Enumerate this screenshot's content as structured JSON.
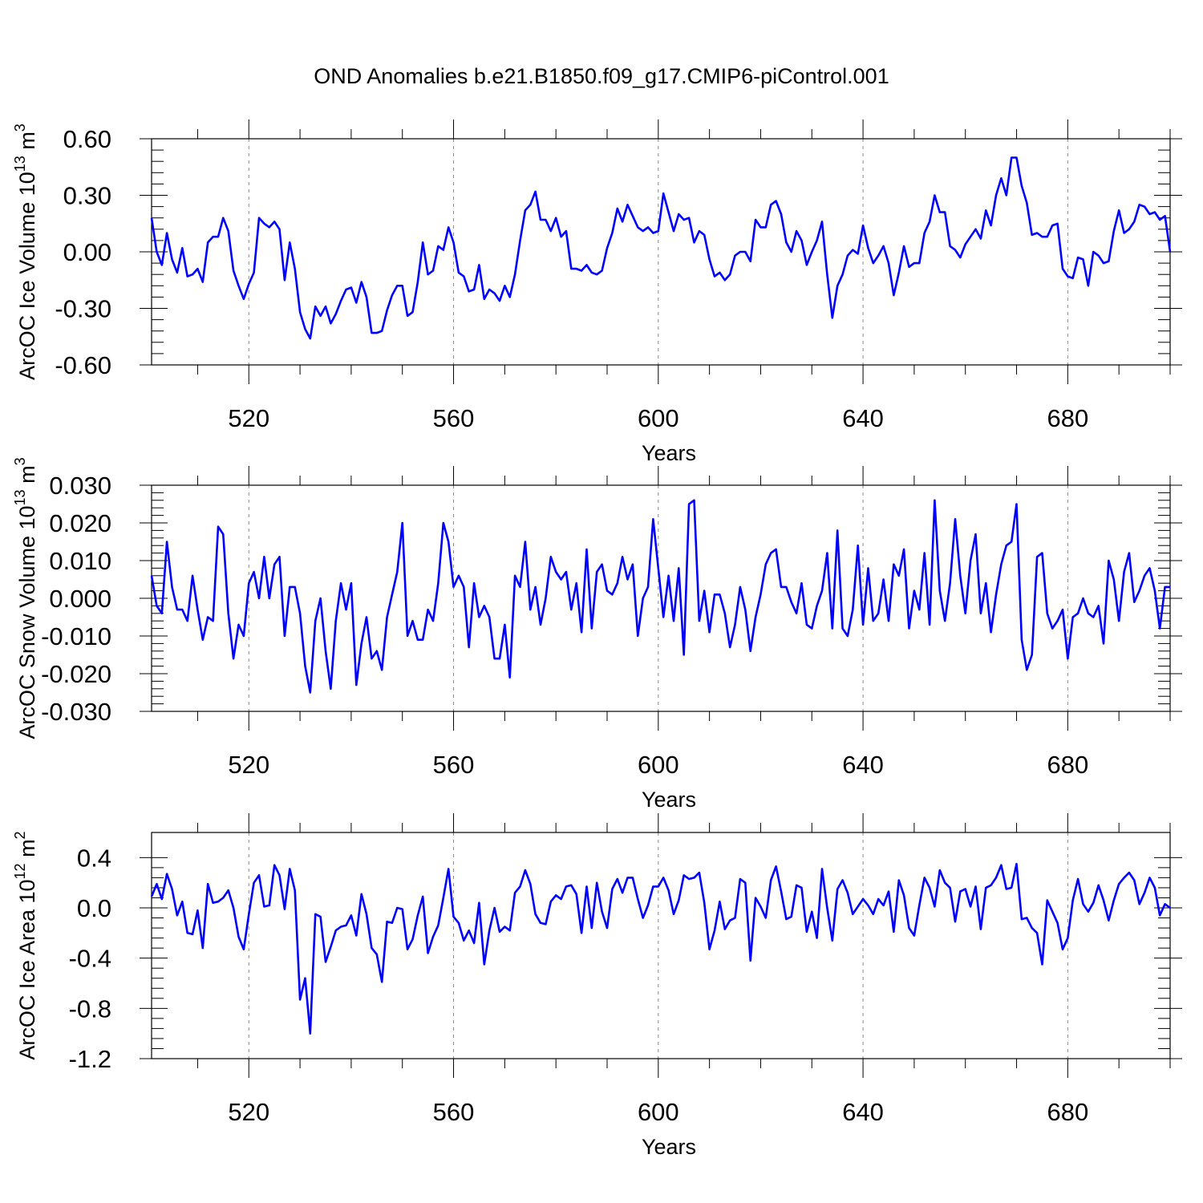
{
  "title": "OND Anomalies b.e21.B1850.f09_g17.CMIP6-piControl.001",
  "colors": {
    "line": "#0000ff",
    "axis": "#000000",
    "grid": "#888888"
  },
  "chart_data": [
    {
      "type": "line",
      "name": "ice-volume",
      "ylabel": "ArcOC Ice Volume 10",
      "ylabel_exp": "13",
      "ylabel_unit": " m",
      "ylabel_unit_exp": "3",
      "xlabel": "Years",
      "xlim": [
        501,
        700
      ],
      "ylim": [
        -0.6,
        0.6
      ],
      "xticks": [
        520,
        560,
        600,
        640,
        680
      ],
      "xtick_labels": [
        "520",
        "560",
        "600",
        "640",
        "680"
      ],
      "yticks": [
        -0.6,
        -0.3,
        0.0,
        0.3,
        0.6
      ],
      "ytick_labels": [
        "-0.60",
        "-0.30",
        "0.00",
        "0.30",
        "0.60"
      ],
      "x_start": 501,
      "values": [
        0.18,
        0.0,
        -0.07,
        0.1,
        -0.04,
        -0.11,
        0.02,
        -0.13,
        -0.12,
        -0.09,
        -0.16,
        0.05,
        0.08,
        0.08,
        0.18,
        0.11,
        -0.1,
        -0.18,
        -0.25,
        -0.17,
        -0.11,
        0.18,
        0.15,
        0.13,
        0.16,
        0.12,
        -0.15,
        0.05,
        -0.09,
        -0.32,
        -0.41,
        -0.46,
        -0.29,
        -0.34,
        -0.29,
        -0.38,
        -0.33,
        -0.26,
        -0.2,
        -0.19,
        -0.27,
        -0.16,
        -0.24,
        -0.43,
        -0.43,
        -0.42,
        -0.31,
        -0.23,
        -0.18,
        -0.18,
        -0.34,
        -0.32,
        -0.16,
        0.05,
        -0.12,
        -0.1,
        0.03,
        0.01,
        0.13,
        0.05,
        -0.11,
        -0.13,
        -0.21,
        -0.2,
        -0.07,
        -0.25,
        -0.2,
        -0.22,
        -0.26,
        -0.18,
        -0.24,
        -0.12,
        0.06,
        0.22,
        0.25,
        0.32,
        0.17,
        0.17,
        0.11,
        0.18,
        0.08,
        0.11,
        -0.09,
        -0.09,
        -0.1,
        -0.07,
        -0.11,
        -0.12,
        -0.1,
        0.02,
        0.1,
        0.23,
        0.16,
        0.25,
        0.19,
        0.13,
        0.11,
        0.13,
        0.1,
        0.11,
        0.31,
        0.21,
        0.11,
        0.2,
        0.17,
        0.18,
        0.05,
        0.11,
        0.09,
        -0.04,
        -0.13,
        -0.11,
        -0.15,
        -0.12,
        -0.02,
        0.0,
        0.0,
        -0.05,
        0.17,
        0.13,
        0.13,
        0.25,
        0.27,
        0.2,
        0.05,
        0.0,
        0.11,
        0.06,
        -0.07,
        0.0,
        0.06,
        0.16,
        -0.12,
        -0.35,
        -0.18,
        -0.12,
        -0.02,
        0.01,
        -0.01,
        0.14,
        0.02,
        -0.06,
        -0.02,
        0.03,
        -0.06,
        -0.23,
        -0.11,
        0.03,
        -0.08,
        -0.06,
        -0.06,
        0.1,
        0.16,
        0.3,
        0.21,
        0.21,
        0.03,
        0.01,
        -0.03,
        0.04,
        0.08,
        0.12,
        0.07,
        0.22,
        0.14,
        0.3,
        0.39,
        0.3,
        0.5,
        0.5,
        0.35,
        0.26,
        0.09,
        0.1,
        0.08,
        0.08,
        0.14,
        0.15,
        -0.09,
        -0.13,
        -0.14,
        -0.03,
        -0.04,
        -0.18,
        0.0,
        -0.02,
        -0.06,
        -0.05,
        0.11,
        0.22,
        0.1,
        0.12,
        0.16,
        0.25,
        0.24,
        0.2,
        0.21,
        0.17,
        0.19,
        0.0
      ]
    },
    {
      "type": "line",
      "name": "snow-volume",
      "ylabel": "ArcOC Snow Volume 10",
      "ylabel_exp": "13",
      "ylabel_unit": " m",
      "ylabel_unit_exp": "3",
      "xlabel": "Years",
      "xlim": [
        501,
        700
      ],
      "ylim": [
        -0.03,
        0.03
      ],
      "xticks": [
        520,
        560,
        600,
        640,
        680
      ],
      "xtick_labels": [
        "520",
        "560",
        "600",
        "640",
        "680"
      ],
      "yticks": [
        -0.03,
        -0.02,
        -0.01,
        0.0,
        0.01,
        0.02,
        0.03
      ],
      "ytick_labels": [
        "-0.030",
        "-0.020",
        "-0.010",
        "0.000",
        "0.010",
        "0.020",
        "0.030"
      ],
      "x_start": 501,
      "values": [
        0.006,
        -0.002,
        -0.004,
        0.015,
        0.003,
        -0.003,
        -0.003,
        -0.006,
        0.006,
        -0.003,
        -0.011,
        -0.005,
        -0.006,
        0.019,
        0.017,
        -0.004,
        -0.016,
        -0.007,
        -0.01,
        0.004,
        0.007,
        0.0,
        0.011,
        0.0,
        0.009,
        0.011,
        -0.01,
        0.003,
        0.003,
        -0.004,
        -0.018,
        -0.025,
        -0.006,
        0.0,
        -0.014,
        -0.024,
        -0.006,
        0.004,
        -0.003,
        0.004,
        -0.023,
        -0.012,
        -0.005,
        -0.016,
        -0.014,
        -0.019,
        -0.005,
        0.001,
        0.007,
        0.02,
        -0.01,
        -0.006,
        -0.011,
        -0.011,
        -0.003,
        -0.006,
        0.004,
        0.02,
        0.015,
        0.003,
        0.006,
        0.003,
        -0.013,
        0.004,
        -0.005,
        -0.002,
        -0.005,
        -0.016,
        -0.016,
        -0.007,
        -0.021,
        0.006,
        0.003,
        0.015,
        -0.003,
        0.003,
        -0.007,
        0.0,
        0.011,
        0.007,
        0.005,
        0.007,
        -0.003,
        0.004,
        -0.009,
        0.013,
        -0.008,
        0.007,
        0.009,
        0.002,
        0.001,
        0.004,
        0.011,
        0.005,
        0.009,
        -0.01,
        0.0,
        0.003,
        0.021,
        0.008,
        -0.005,
        0.006,
        -0.006,
        0.008,
        -0.015,
        0.025,
        0.026,
        -0.006,
        0.002,
        -0.009,
        0.001,
        0.001,
        -0.004,
        -0.013,
        -0.007,
        0.003,
        -0.003,
        -0.014,
        -0.005,
        0.001,
        0.009,
        0.012,
        0.013,
        0.003,
        0.003,
        -0.001,
        -0.004,
        0.004,
        -0.007,
        -0.008,
        -0.002,
        0.002,
        0.012,
        -0.008,
        0.018,
        -0.008,
        -0.01,
        -0.003,
        0.014,
        -0.007,
        0.008,
        -0.006,
        -0.004,
        0.005,
        -0.006,
        0.009,
        0.006,
        0.013,
        -0.008,
        0.002,
        -0.003,
        0.012,
        -0.007,
        0.026,
        0.002,
        -0.006,
        0.004,
        0.021,
        0.006,
        -0.004,
        0.01,
        0.017,
        -0.004,
        0.004,
        -0.009,
        0.001,
        0.009,
        0.014,
        0.015,
        0.025,
        -0.011,
        -0.019,
        -0.015,
        0.011,
        0.012,
        -0.004,
        -0.008,
        -0.006,
        -0.003,
        -0.016,
        -0.005,
        -0.004,
        0.0,
        -0.004,
        -0.005,
        -0.002,
        -0.012,
        0.01,
        0.005,
        -0.006,
        0.007,
        0.012,
        -0.001,
        0.002,
        0.006,
        0.008,
        0.002,
        -0.008,
        0.003,
        0.003
      ]
    },
    {
      "type": "line",
      "name": "ice-area",
      "ylabel": "ArcOC Ice Area 10",
      "ylabel_exp": "12",
      "ylabel_unit": " m",
      "ylabel_unit_exp": "2",
      "xlabel": "Years",
      "xlim": [
        501,
        700
      ],
      "ylim": [
        -1.2,
        0.6
      ],
      "xticks": [
        520,
        560,
        600,
        640,
        680
      ],
      "xtick_labels": [
        "520",
        "560",
        "600",
        "640",
        "680"
      ],
      "yticks": [
        -1.2,
        -0.8,
        -0.4,
        0.0,
        0.4
      ],
      "ytick_labels": [
        "-1.2",
        "-0.8",
        "-0.4",
        "0.0",
        "0.4"
      ],
      "x_start": 501,
      "values": [
        0.09,
        0.19,
        0.07,
        0.27,
        0.15,
        -0.06,
        0.05,
        -0.2,
        -0.21,
        -0.02,
        -0.32,
        0.19,
        0.04,
        0.05,
        0.08,
        0.14,
        0.0,
        -0.23,
        -0.33,
        -0.05,
        0.2,
        0.26,
        0.01,
        0.02,
        0.34,
        0.26,
        -0.01,
        0.31,
        0.14,
        -0.73,
        -0.56,
        -1.0,
        -0.05,
        -0.07,
        -0.43,
        -0.31,
        -0.18,
        -0.15,
        -0.14,
        -0.06,
        -0.22,
        0.11,
        -0.05,
        -0.32,
        -0.37,
        -0.59,
        -0.11,
        -0.12,
        0.0,
        -0.01,
        -0.33,
        -0.25,
        -0.06,
        0.09,
        -0.36,
        -0.23,
        -0.14,
        0.08,
        0.31,
        -0.07,
        -0.12,
        -0.26,
        -0.18,
        -0.28,
        0.04,
        -0.45,
        -0.18,
        0.0,
        -0.19,
        -0.15,
        -0.18,
        0.12,
        0.17,
        0.3,
        0.19,
        -0.05,
        -0.12,
        -0.13,
        0.05,
        0.1,
        0.07,
        0.17,
        0.18,
        0.11,
        -0.2,
        0.17,
        -0.16,
        0.2,
        -0.03,
        -0.16,
        0.15,
        0.23,
        0.12,
        0.24,
        0.24,
        0.07,
        -0.08,
        0.02,
        0.17,
        0.17,
        0.24,
        0.14,
        -0.05,
        0.06,
        0.26,
        0.23,
        0.24,
        0.28,
        0.04,
        -0.33,
        -0.18,
        0.05,
        -0.17,
        -0.1,
        -0.08,
        0.23,
        0.2,
        -0.42,
        0.08,
        0.01,
        -0.08,
        0.22,
        0.33,
        0.13,
        -0.09,
        -0.07,
        0.18,
        0.16,
        -0.19,
        -0.03,
        -0.24,
        0.31,
        0.0,
        -0.26,
        0.15,
        0.22,
        0.12,
        -0.05,
        0.01,
        0.07,
        0.02,
        -0.05,
        0.07,
        0.02,
        0.13,
        -0.19,
        0.22,
        0.1,
        -0.16,
        -0.22,
        0.02,
        0.24,
        0.16,
        0.01,
        0.3,
        0.2,
        0.16,
        -0.11,
        0.13,
        0.15,
        0.01,
        0.17,
        -0.17,
        0.16,
        0.18,
        0.24,
        0.34,
        0.15,
        0.16,
        0.35,
        -0.09,
        -0.08,
        -0.16,
        -0.2,
        -0.45,
        0.06,
        -0.03,
        -0.12,
        -0.33,
        -0.24,
        0.06,
        0.23,
        0.03,
        -0.03,
        0.04,
        0.18,
        0.06,
        -0.1,
        0.06,
        0.19,
        0.24,
        0.28,
        0.22,
        0.03,
        0.12,
        0.24,
        0.16,
        -0.06,
        0.03,
        0.0
      ]
    }
  ]
}
